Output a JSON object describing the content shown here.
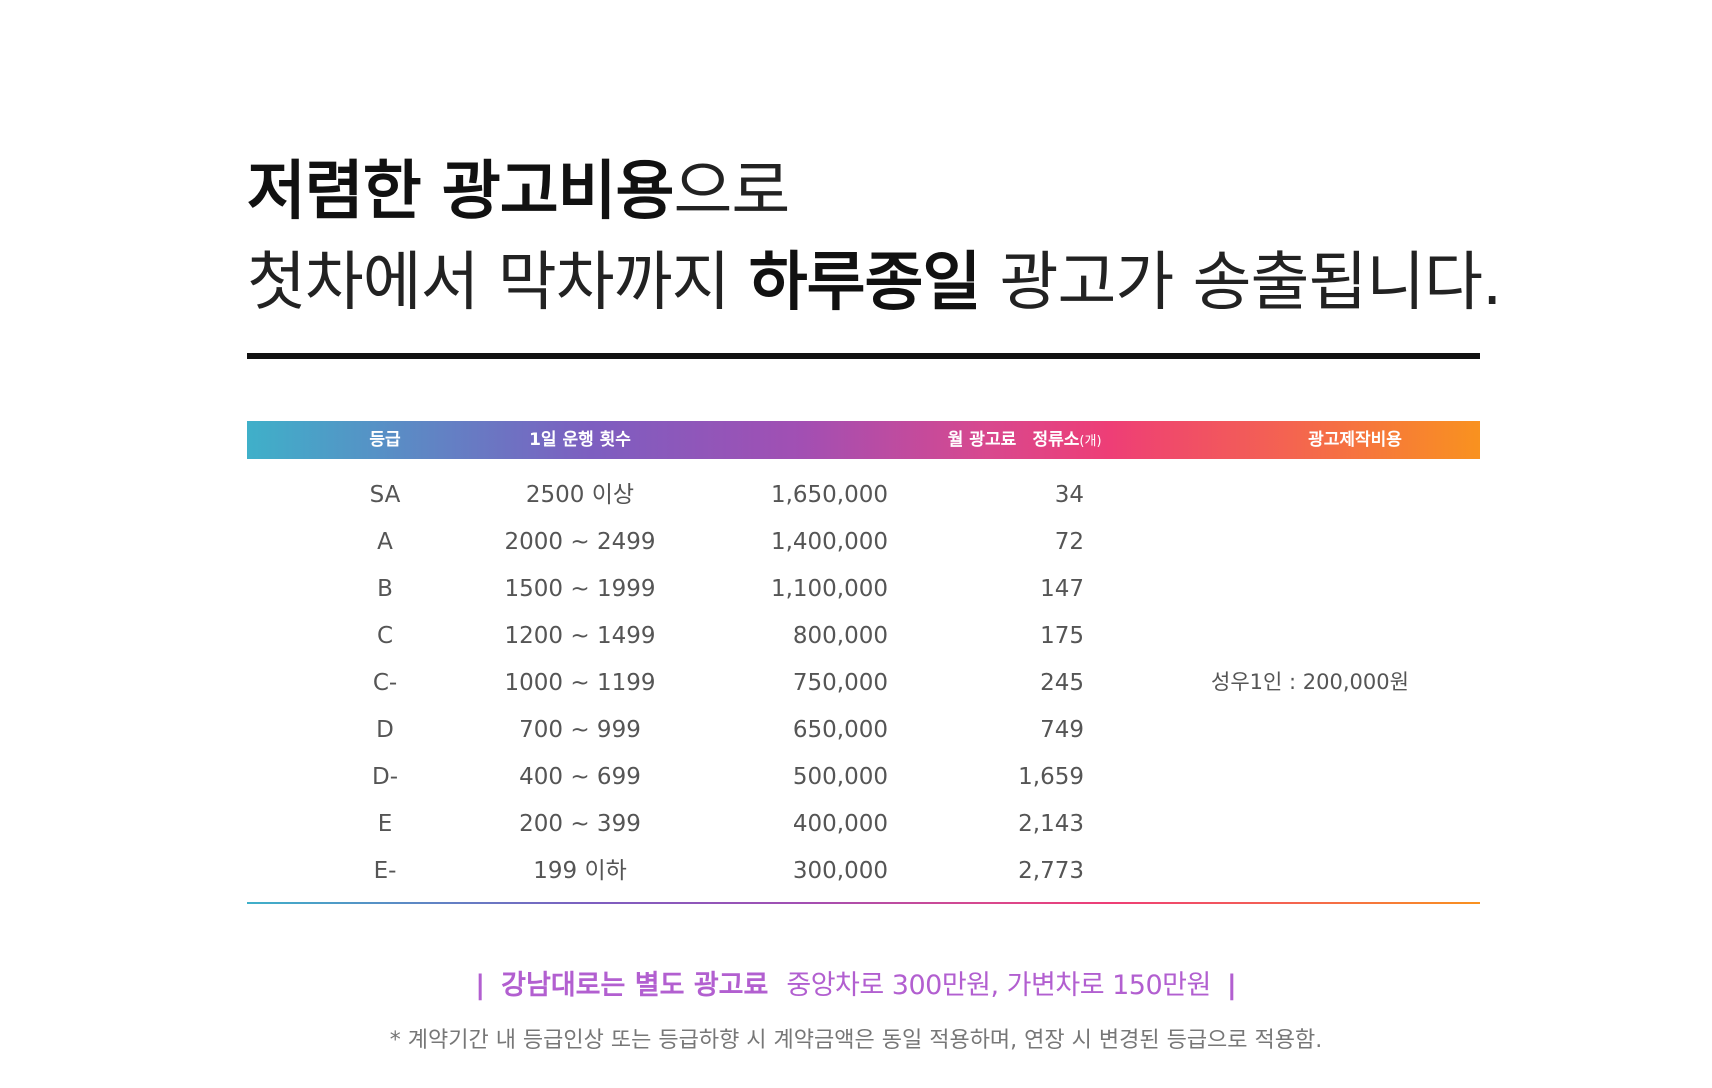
{
  "headline": {
    "line1_bold": "저렴한 광고비용",
    "line1_normal": "으로",
    "line2_normal_a": "첫차에서 막차까지 ",
    "line2_bold": "하루종일",
    "line2_normal_b": " 광고가 송출됩니다."
  },
  "table": {
    "headers": {
      "grade": "등급",
      "daily_runs": "1일 운행 횟수",
      "monthly_fee": "월 광고료",
      "stops": "정류소",
      "stops_unit": "(개)",
      "production_cost": "광고제작비용"
    },
    "rows": [
      {
        "grade": "SA",
        "daily_runs": "2500 이상",
        "monthly_fee": "1,650,000",
        "stops": "34"
      },
      {
        "grade": "A",
        "daily_runs": "2000 ~ 2499",
        "monthly_fee": "1,400,000",
        "stops": "72"
      },
      {
        "grade": "B",
        "daily_runs": "1500 ~ 1999",
        "monthly_fee": "1,100,000",
        "stops": "147"
      },
      {
        "grade": "C",
        "daily_runs": "1200 ~ 1499",
        "monthly_fee": "800,000",
        "stops": "175"
      },
      {
        "grade": "C-",
        "daily_runs": "1000 ~ 1199",
        "monthly_fee": "750,000",
        "stops": "245"
      },
      {
        "grade": "D",
        "daily_runs": "700 ~ 999",
        "monthly_fee": "650,000",
        "stops": "749"
      },
      {
        "grade": "D-",
        "daily_runs": "400 ~ 699",
        "monthly_fee": "500,000",
        "stops": "1,659"
      },
      {
        "grade": "E",
        "daily_runs": "200 ~ 399",
        "monthly_fee": "400,000",
        "stops": "2,143"
      },
      {
        "grade": "E-",
        "daily_runs": "199 이하",
        "monthly_fee": "300,000",
        "stops": "2,773"
      }
    ],
    "production_cost_value": "성우1인 : 200,000원"
  },
  "notice": {
    "bar_left": "|",
    "strong": "강남대로는 별도 광고료",
    "normal": "중앙차로 300만원, 가변차로 150만원",
    "bar_right": "|"
  },
  "footnote": "* 계약기간 내 등급인상 또는 등급하향 시 계약금액은 동일 적용하며, 연장 시 변경된 등급으로 적용함.",
  "colors": {
    "gradient_start": "#3fb0c9",
    "gradient_mid": "#d8488e",
    "gradient_end": "#f9921f",
    "notice_purple": "#b25fd0"
  }
}
